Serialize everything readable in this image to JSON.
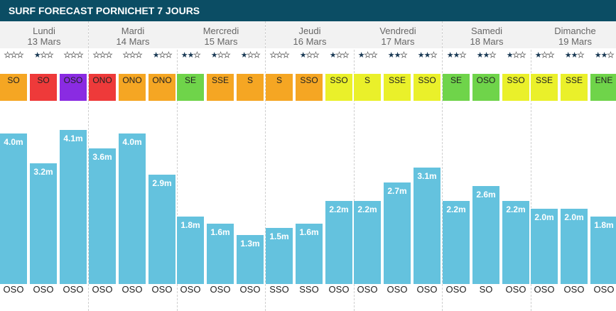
{
  "title": "SURF FORECAST PORNICHET 7 JOURS",
  "days": [
    {
      "name": "Lundi",
      "date": "13 Mars",
      "slots": [
        {
          "stars": 0,
          "wind": "SO",
          "wind_color": "#f5a623",
          "wind_angle": 45,
          "height": 4.0,
          "height_label": "4.0m",
          "swell": "OSO",
          "swell_angle": 65
        },
        {
          "stars": 1,
          "wind": "SO",
          "wind_color": "#ee3a3a",
          "wind_angle": 45,
          "height": 3.2,
          "height_label": "3.2m",
          "swell": "OSO",
          "swell_angle": 65
        },
        {
          "stars": 0,
          "wind": "OSO",
          "wind_color": "#8a2be2",
          "wind_angle": 65,
          "height": 4.1,
          "height_label": "4.1m",
          "swell": "OSO",
          "swell_angle": 65
        }
      ]
    },
    {
      "name": "Mardi",
      "date": "14 Mars",
      "slots": [
        {
          "stars": 0,
          "wind": "ONO",
          "wind_color": "#ee3a3a",
          "wind_angle": 115,
          "height": 3.6,
          "height_label": "3.6m",
          "swell": "OSO",
          "swell_angle": 65
        },
        {
          "stars": 0,
          "wind": "ONO",
          "wind_color": "#f5a623",
          "wind_angle": 115,
          "height": 4.0,
          "height_label": "4.0m",
          "swell": "OSO",
          "swell_angle": 65
        },
        {
          "stars": 1,
          "wind": "ONO",
          "wind_color": "#f5a623",
          "wind_angle": 115,
          "height": 2.9,
          "height_label": "2.9m",
          "swell": "OSO",
          "swell_angle": 65
        }
      ]
    },
    {
      "name": "Mercredi",
      "date": "15 Mars",
      "slots": [
        {
          "stars": 2,
          "wind": "SE",
          "wind_color": "#6fd44a",
          "wind_angle": -45,
          "height": 1.8,
          "height_label": "1.8m",
          "swell": "OSO",
          "swell_angle": 65
        },
        {
          "stars": 1,
          "wind": "SSE",
          "wind_color": "#f5a623",
          "wind_angle": -22,
          "height": 1.6,
          "height_label": "1.6m",
          "swell": "OSO",
          "swell_angle": 65
        },
        {
          "stars": 1,
          "wind": "S",
          "wind_color": "#f5a623",
          "wind_angle": 0,
          "height": 1.3,
          "height_label": "1.3m",
          "swell": "OSO",
          "swell_angle": 65
        }
      ]
    },
    {
      "name": "Jeudi",
      "date": "16 Mars",
      "slots": [
        {
          "stars": 0,
          "wind": "S",
          "wind_color": "#f5a623",
          "wind_angle": 0,
          "height": 1.5,
          "height_label": "1.5m",
          "swell": "SSO",
          "swell_angle": 22
        },
        {
          "stars": 1,
          "wind": "SSO",
          "wind_color": "#f5a623",
          "wind_angle": 22,
          "height": 1.6,
          "height_label": "1.6m",
          "swell": "SSO",
          "swell_angle": 22
        },
        {
          "stars": 1,
          "wind": "SSO",
          "wind_color": "#eaf02a",
          "wind_angle": 22,
          "height": 2.2,
          "height_label": "2.2m",
          "swell": "OSO",
          "swell_angle": 65
        }
      ]
    },
    {
      "name": "Vendredi",
      "date": "17 Mars",
      "slots": [
        {
          "stars": 1,
          "wind": "S",
          "wind_color": "#eaf02a",
          "wind_angle": 0,
          "height": 2.2,
          "height_label": "2.2m",
          "swell": "OSO",
          "swell_angle": 65
        },
        {
          "stars": 2,
          "wind": "SSE",
          "wind_color": "#eaf02a",
          "wind_angle": -22,
          "height": 2.7,
          "height_label": "2.7m",
          "swell": "OSO",
          "swell_angle": 65
        },
        {
          "stars": 2,
          "wind": "SSO",
          "wind_color": "#eaf02a",
          "wind_angle": 22,
          "height": 3.1,
          "height_label": "3.1m",
          "swell": "OSO",
          "swell_angle": 65
        }
      ]
    },
    {
      "name": "Samedi",
      "date": "18 Mars",
      "slots": [
        {
          "stars": 2,
          "wind": "SE",
          "wind_color": "#6fd44a",
          "wind_angle": -45,
          "height": 2.2,
          "height_label": "2.2m",
          "swell": "OSO",
          "swell_angle": 65
        },
        {
          "stars": 2,
          "wind": "OSO",
          "wind_color": "#6fd44a",
          "wind_angle": 65,
          "height": 2.6,
          "height_label": "2.6m",
          "swell": "SO",
          "swell_angle": 45
        },
        {
          "stars": 1,
          "wind": "SSO",
          "wind_color": "#eaf02a",
          "wind_angle": 22,
          "height": 2.2,
          "height_label": "2.2m",
          "swell": "OSO",
          "swell_angle": 65
        }
      ]
    },
    {
      "name": "Dimanche",
      "date": "19 Mars",
      "slots": [
        {
          "stars": 1,
          "wind": "SSE",
          "wind_color": "#eaf02a",
          "wind_angle": -22,
          "height": 2.0,
          "height_label": "2.0m",
          "swell": "OSO",
          "swell_angle": 65
        },
        {
          "stars": 2,
          "wind": "SSE",
          "wind_color": "#eaf02a",
          "wind_angle": -22,
          "height": 2.0,
          "height_label": "2.0m",
          "swell": "OSO",
          "swell_angle": 65
        },
        {
          "stars": 2,
          "wind": "ENE",
          "wind_color": "#6fd44a",
          "wind_angle": -115,
          "height": 1.8,
          "height_label": "1.8m",
          "swell": "OSO",
          "swell_angle": 65
        }
      ]
    }
  ]
}
